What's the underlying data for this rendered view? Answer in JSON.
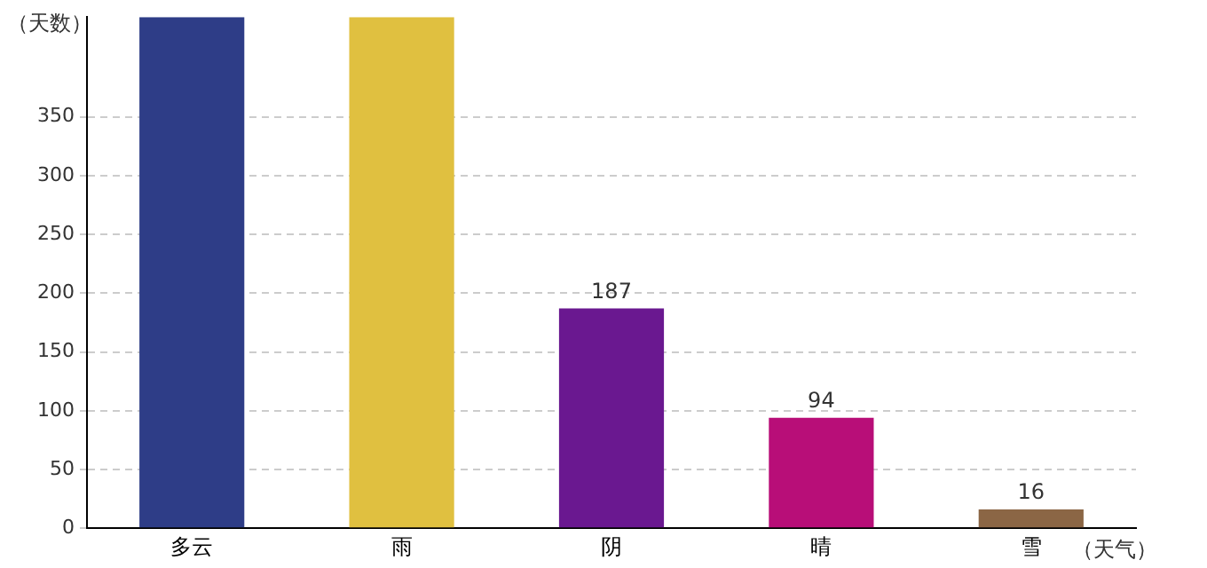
{
  "chart_data": {
    "type": "bar",
    "ylabel": "（天数）",
    "xlabel": "（天气）",
    "categories": [
      "多云",
      "雨",
      "阴",
      "晴",
      "雪"
    ],
    "values": [
      435,
      435,
      187,
      94,
      16
    ],
    "value_labels": [
      null,
      null,
      "187",
      "94",
      "16"
    ],
    "colors": [
      "#2e3d87",
      "#e0c040",
      "#6a1890",
      "#b80e78",
      "#8b6645"
    ],
    "ylim": [
      0,
      435
    ],
    "yticks": [
      0,
      50,
      100,
      150,
      200,
      250,
      300,
      350
    ],
    "grid": "y"
  }
}
